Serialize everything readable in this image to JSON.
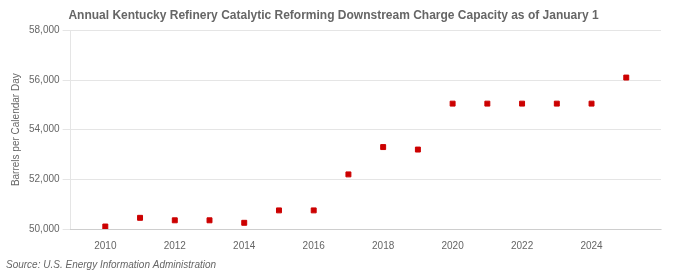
{
  "chart_data": {
    "type": "scatter",
    "title": "Annual Kentucky Refinery Catalytic Reforming Downstream Charge Capacity as of January 1",
    "subtitle": "Source: U.S. Energy Information Administration",
    "y_label": "Barrels per Calendar Day",
    "x": [
      2010,
      2011,
      2012,
      2013,
      2014,
      2015,
      2016,
      2017,
      2018,
      2019,
      2020,
      2021,
      2022,
      2023,
      2024,
      2025
    ],
    "values": [
      50100,
      50450,
      50350,
      50350,
      50250,
      50750,
      50750,
      52200,
      53300,
      53200,
      55050,
      55050,
      55050,
      55050,
      55050,
      56100
    ],
    "color": "#cc0000",
    "marker": "square",
    "xlim": [
      2009,
      2026
    ],
    "xticks": [
      2010,
      2012,
      2014,
      2016,
      2018,
      2020,
      2022,
      2024
    ],
    "ylim": [
      50000,
      58000
    ],
    "yticks": [
      {
        "value": 50000,
        "label": "50,000"
      },
      {
        "value": 52000,
        "label": "52,000"
      },
      {
        "value": 54000,
        "label": "54,000"
      },
      {
        "value": 56000,
        "label": "56,000"
      },
      {
        "value": 58000,
        "label": "58,000"
      }
    ],
    "grid": "y"
  }
}
